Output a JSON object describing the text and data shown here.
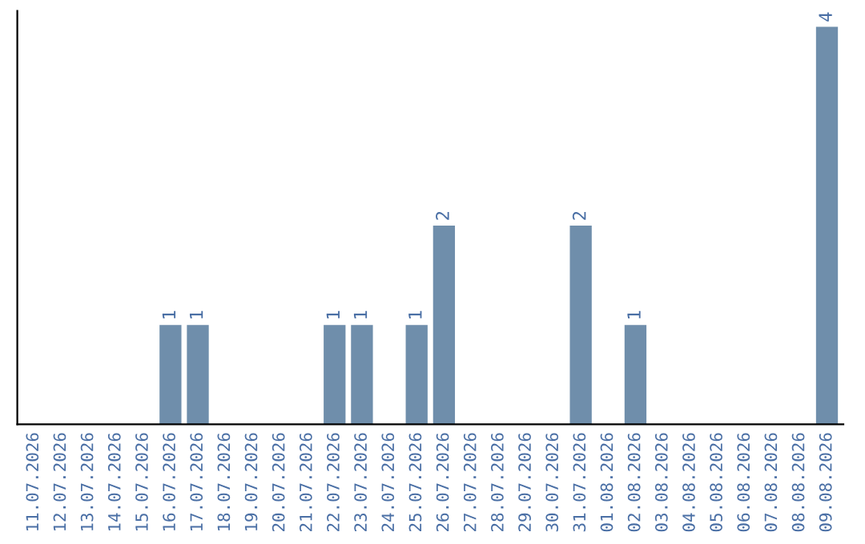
{
  "chart_data": {
    "type": "bar",
    "categories": [
      "11.07.2026",
      "12.07.2026",
      "13.07.2026",
      "14.07.2026",
      "15.07.2026",
      "16.07.2026",
      "17.07.2026",
      "18.07.2026",
      "19.07.2026",
      "20.07.2026",
      "21.07.2026",
      "22.07.2026",
      "23.07.2026",
      "24.07.2026",
      "25.07.2026",
      "26.07.2026",
      "27.07.2026",
      "28.07.2026",
      "29.07.2026",
      "30.07.2026",
      "31.07.2026",
      "01.08.2026",
      "02.08.2026",
      "03.08.2026",
      "04.08.2026",
      "05.08.2026",
      "06.08.2026",
      "07.08.2026",
      "08.08.2026",
      "09.08.2026"
    ],
    "values": [
      0,
      0,
      0,
      0,
      0,
      1,
      1,
      0,
      0,
      0,
      0,
      1,
      1,
      0,
      1,
      2,
      0,
      0,
      0,
      0,
      2,
      0,
      1,
      0,
      0,
      0,
      0,
      0,
      0,
      4
    ],
    "value_labels": [
      null,
      null,
      null,
      null,
      null,
      "1",
      "1",
      null,
      null,
      null,
      null,
      "1",
      "1",
      null,
      "1",
      "2",
      null,
      null,
      null,
      null,
      "2",
      null,
      "1",
      null,
      null,
      null,
      null,
      null,
      null,
      "4"
    ],
    "color": "#6f8eab"
  }
}
